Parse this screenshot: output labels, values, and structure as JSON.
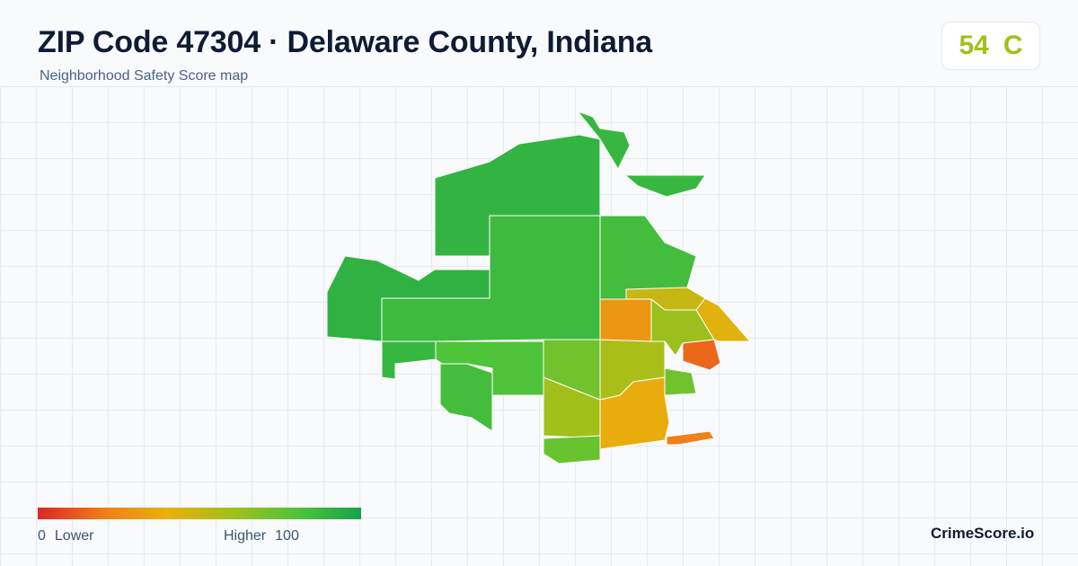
{
  "header": {
    "title": "ZIP Code 47304 · Delaware County, Indiana",
    "subtitle": "Neighborhood Safety Score map"
  },
  "score_badge": {
    "score": "54",
    "grade": "C",
    "color": "#a3bf1a"
  },
  "legend": {
    "min_value": "0",
    "min_label": "Lower",
    "max_label": "Higher",
    "max_value": "100",
    "gradient_colors": [
      "#dc2626",
      "#f07c19",
      "#e8b10c",
      "#a3bf1a",
      "#4fc43a",
      "#16a34a"
    ]
  },
  "brand": {
    "name": "CrimeScore.io"
  },
  "map": {
    "regions": [
      {
        "id": "north-central",
        "score": 90
      },
      {
        "id": "northeast-strip",
        "score": 88
      },
      {
        "id": "west",
        "score": 91
      },
      {
        "id": "central-large",
        "score": 86
      },
      {
        "id": "east-central",
        "score": 84
      },
      {
        "id": "south-central-west",
        "score": 80
      },
      {
        "id": "southwest-lobe",
        "score": 84
      },
      {
        "id": "south-center",
        "score": 72
      },
      {
        "id": "south-lower",
        "score": 60
      },
      {
        "id": "south-bottom",
        "score": 74
      },
      {
        "id": "center-east",
        "score": 58
      },
      {
        "id": "east-orange",
        "score": 30
      },
      {
        "id": "east-small-green",
        "score": 72
      },
      {
        "id": "east-yellow-1",
        "score": 50
      },
      {
        "id": "east-yellow-2",
        "score": 62
      },
      {
        "id": "east-red",
        "score": 15
      },
      {
        "id": "far-east",
        "score": 42
      },
      {
        "id": "southeast-orange",
        "score": 38
      },
      {
        "id": "southeast-tip",
        "score": 22
      }
    ]
  }
}
